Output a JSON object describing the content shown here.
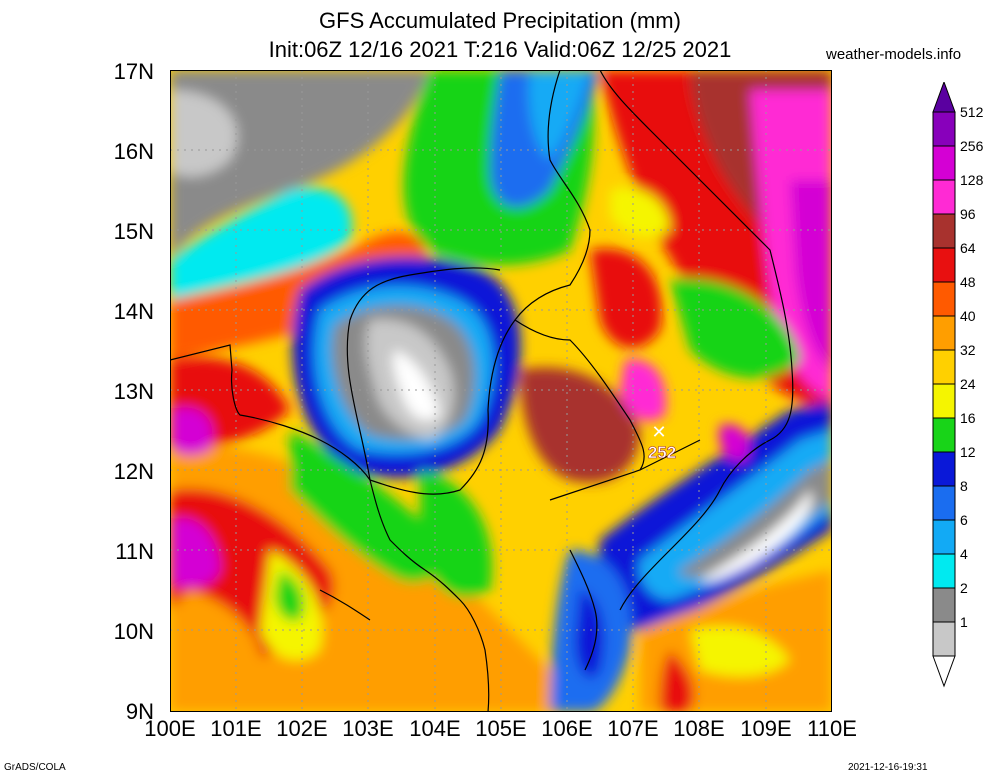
{
  "header": {
    "title_line1": "GFS Accumulated Precipitation (mm)",
    "title_line2": "Init:06Z 12/16 2021 T:216 Valid:06Z 12/25 2021",
    "site": "weather-models.info"
  },
  "axes": {
    "lat_labels": [
      "17N",
      "16N",
      "15N",
      "14N",
      "13N",
      "12N",
      "11N",
      "10N",
      "9N"
    ],
    "lon_labels": [
      "100E",
      "101E",
      "102E",
      "103E",
      "104E",
      "105E",
      "106E",
      "107E",
      "108E",
      "109E",
      "110E"
    ]
  },
  "legend": {
    "levels": [
      "512",
      "256",
      "128",
      "96",
      "64",
      "48",
      "40",
      "32",
      "24",
      "16",
      "12",
      "8",
      "6",
      "4",
      "2",
      "1"
    ],
    "colors": [
      "#5a00a0",
      "#8800bb",
      "#d400d4",
      "#ff2ad4",
      "#a8322e",
      "#e81010",
      "#ff5a00",
      "#ff9e00",
      "#ffd000",
      "#f5f500",
      "#18d418",
      "#0a18d8",
      "#1a6df0",
      "#12aaf5",
      "#00eaf0",
      "#8a8a8a",
      "#c8c8c8",
      "#ffffff"
    ]
  },
  "marker": {
    "value": "252",
    "symbol": "✕"
  },
  "footer": {
    "left": "GrADS/COLA",
    "right": "2021-12-16-19:31"
  }
}
